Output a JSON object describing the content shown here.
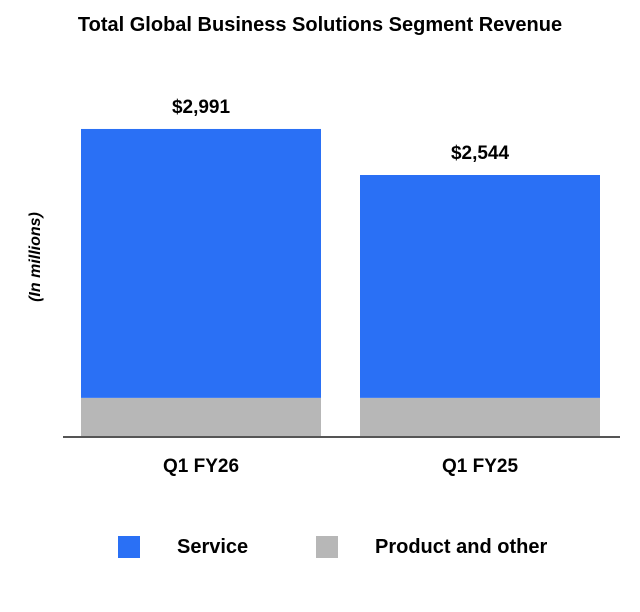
{
  "chart_data": {
    "type": "bar",
    "stacked": true,
    "title": "Total Global Business Solutions Segment Revenue",
    "ylabel": "(In millions)",
    "xlabel": "",
    "categories": [
      "Q1 FY26",
      "Q1 FY25"
    ],
    "totals_labels": [
      "$2,991",
      "$2,544"
    ],
    "series": [
      {
        "name": "Product and other",
        "values": [
          380,
          380
        ],
        "color": "#b7b7b7"
      },
      {
        "name": "Service",
        "values": [
          2611,
          2164
        ],
        "color": "#2a70f5"
      }
    ],
    "ylim": [
      0,
      3350
    ],
    "grid": false,
    "legend": "bottom"
  }
}
